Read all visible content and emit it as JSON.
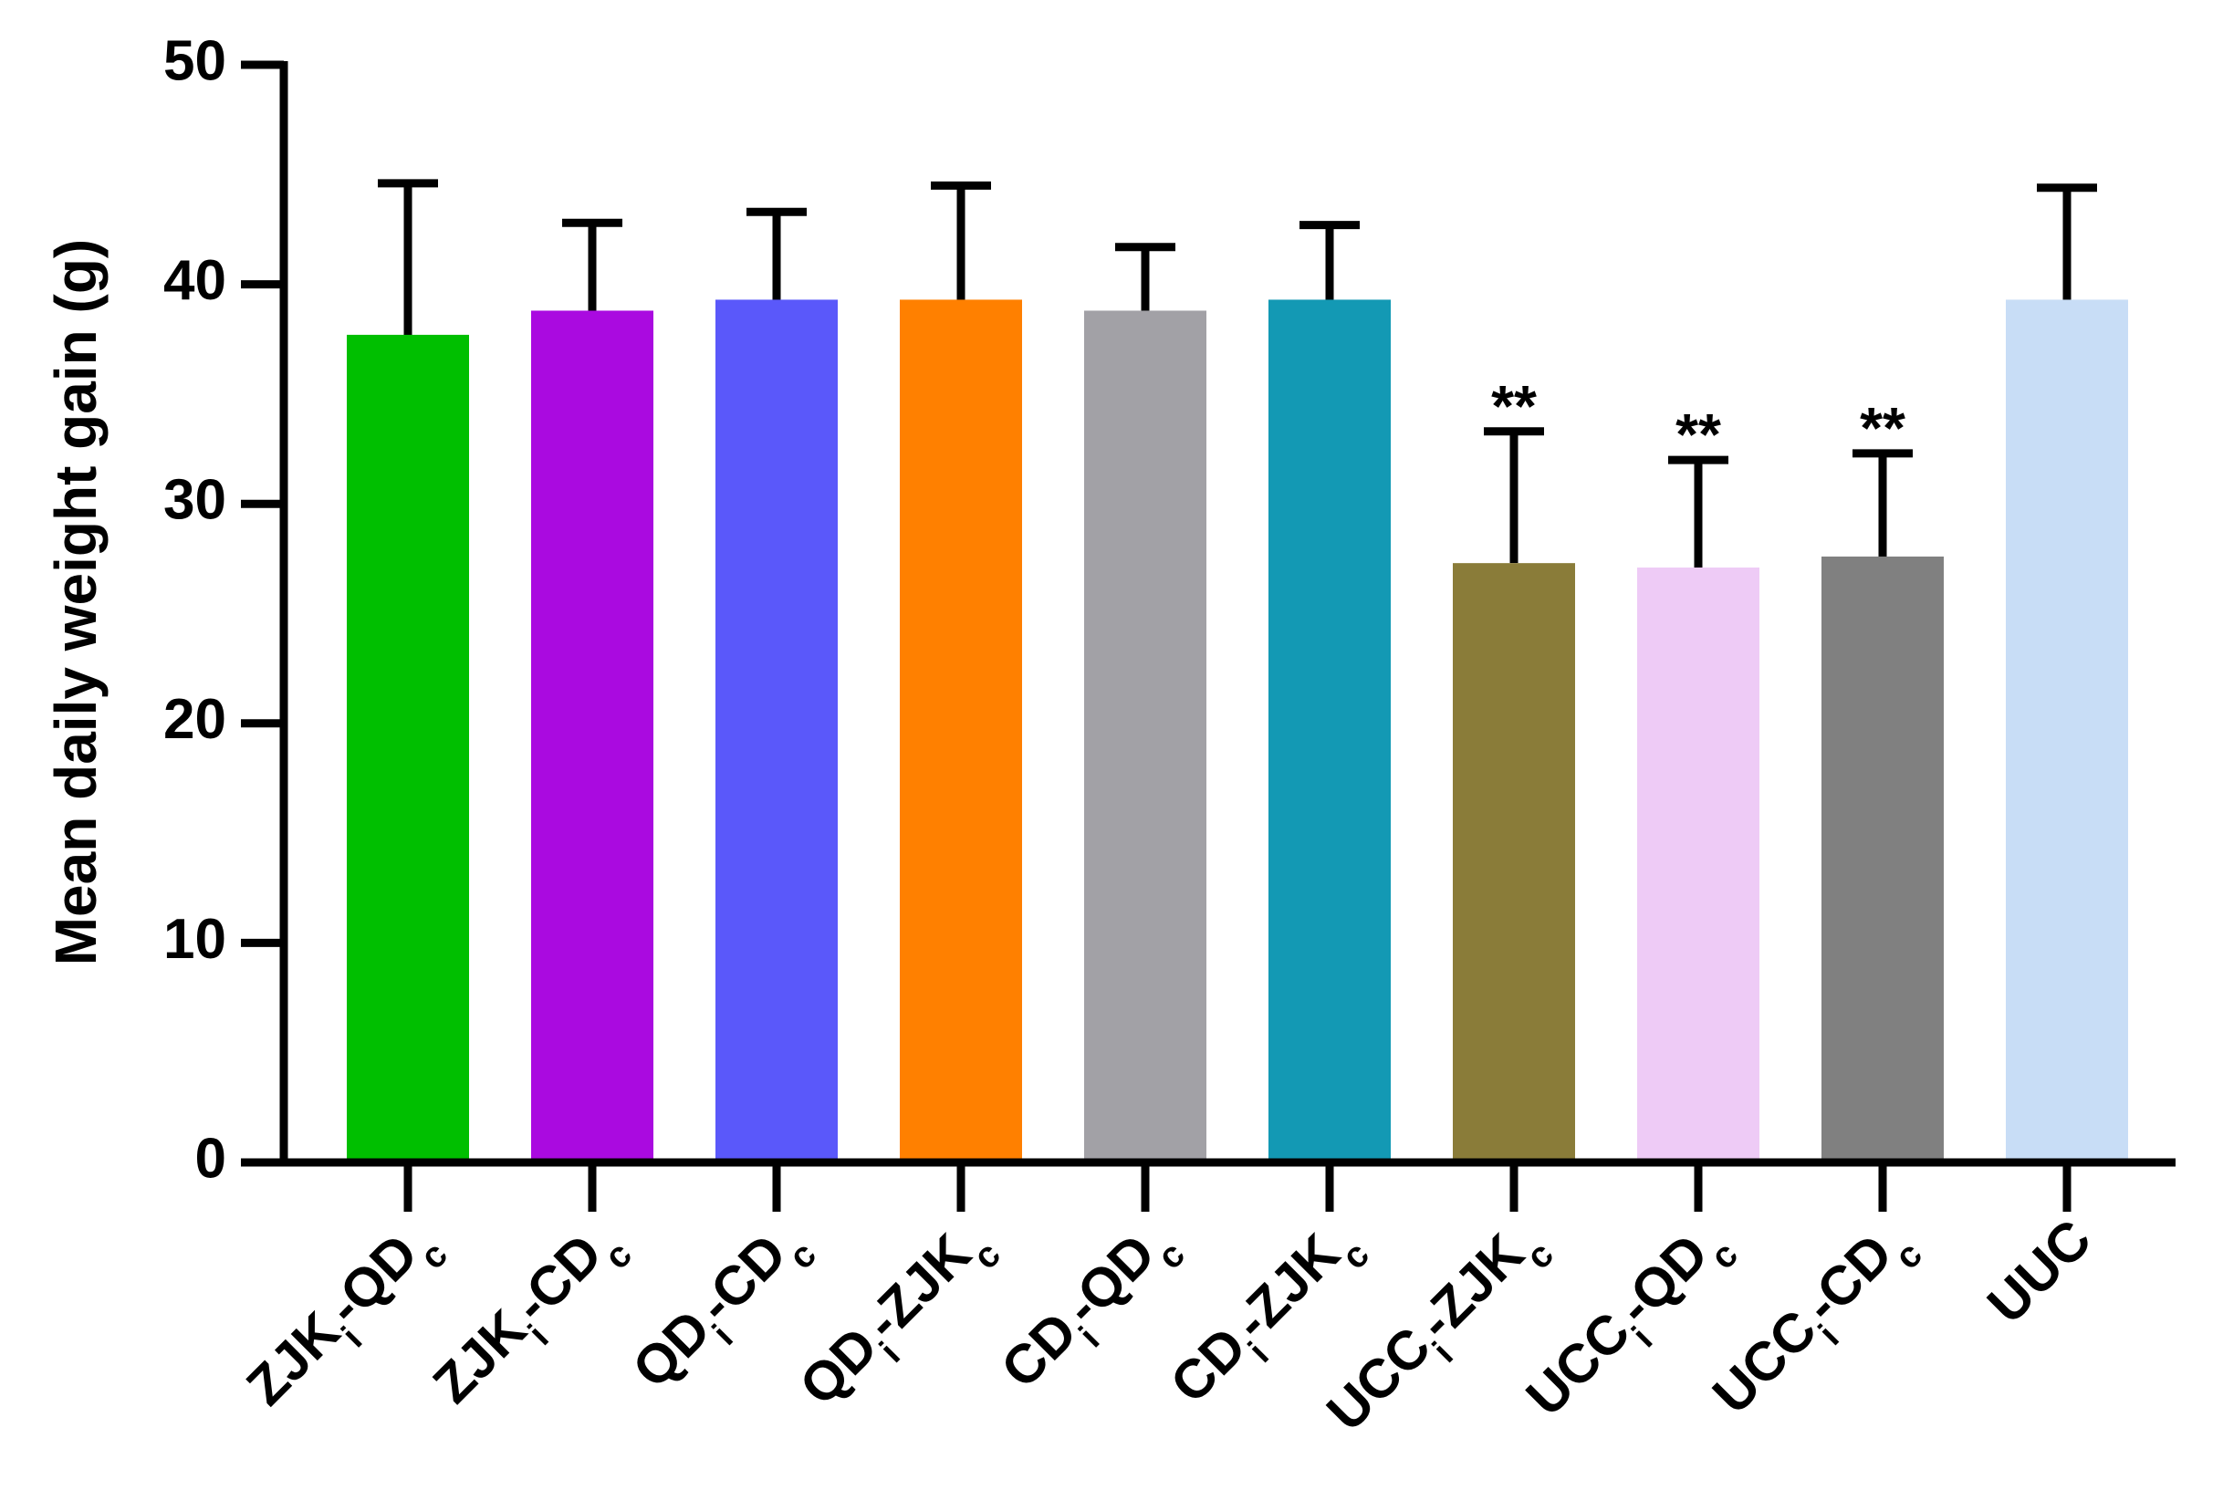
{
  "chart_data": {
    "type": "bar",
    "ylabel": "Mean daily weight gain (g)",
    "categories": [
      [
        "ZJK",
        "i",
        "-QD",
        "c"
      ],
      [
        "ZJK",
        "i",
        "-CD",
        "c"
      ],
      [
        "QD",
        "i",
        "-CD",
        "c"
      ],
      [
        "QD",
        "i",
        "-ZJK",
        "c"
      ],
      [
        "CD",
        "i",
        "-QD",
        "c"
      ],
      [
        "CD",
        "i",
        "-ZJK",
        "c"
      ],
      [
        "UCC",
        "i",
        "-ZJK",
        "c"
      ],
      [
        "UCC",
        "i",
        "-QD",
        "c"
      ],
      [
        "UCC",
        "i",
        "-CD",
        "c"
      ],
      [
        "UUC"
      ]
    ],
    "values": [
      37.7,
      38.8,
      39.3,
      39.3,
      38.8,
      39.3,
      27.3,
      27.1,
      27.6,
      39.3
    ],
    "errors": [
      6.9,
      4.0,
      4.0,
      5.2,
      2.9,
      3.4,
      6.0,
      4.9,
      4.7,
      5.1
    ],
    "colors": [
      "#00bf00",
      "#aa0ae0",
      "#5a58fa",
      "#ff8000",
      "#a2a1a6",
      "#1399b4",
      "#8a7c39",
      "#eecbf6",
      "#808080",
      "#c8ddf6"
    ],
    "significance": [
      null,
      null,
      null,
      null,
      null,
      null,
      "**",
      "**",
      "**",
      null
    ],
    "ylim": [
      0,
      50
    ],
    "yticks": [
      0,
      10,
      20,
      30,
      40,
      50
    ],
    "grid": false
  }
}
